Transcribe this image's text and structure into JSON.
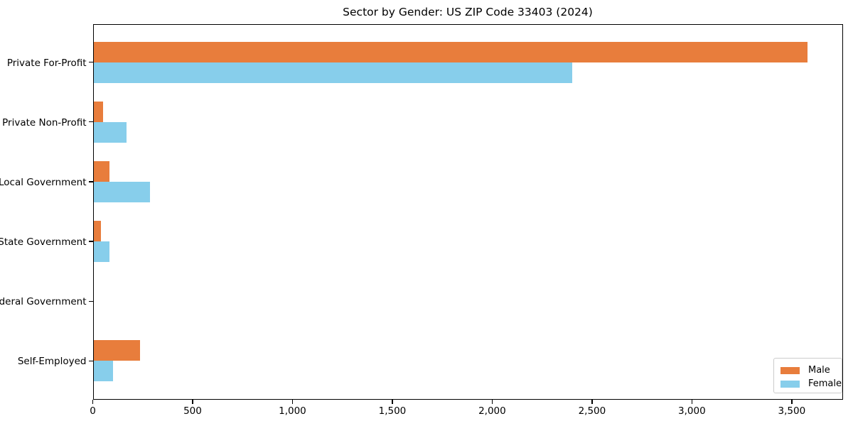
{
  "chart_data": {
    "type": "bar",
    "orientation": "horizontal",
    "title": "Sector by Gender: US ZIP Code 33403 (2024)",
    "categories": [
      "Private For-Profit",
      "Private Non-Profit",
      "Local Government",
      "State Government",
      "Federal Government",
      "Self-Employed"
    ],
    "series": [
      {
        "name": "Male",
        "color": "#E87D3C",
        "values": [
          3580,
          50,
          85,
          40,
          0,
          235
        ]
      },
      {
        "name": "Female",
        "color": "#87CEEB",
        "values": [
          2400,
          170,
          285,
          85,
          0,
          100
        ]
      }
    ],
    "xlabel": "",
    "ylabel": "",
    "xlim": [
      0,
      3755
    ],
    "xticks": [
      0,
      500,
      1000,
      1500,
      2000,
      2500,
      3000,
      3500
    ],
    "xtick_labels": [
      "0",
      "500",
      "1,000",
      "1,500",
      "2,000",
      "2,500",
      "3,000",
      "3,500"
    ],
    "grid": false,
    "legend_position": "lower right",
    "axis_color": "#000000",
    "background_color": "#ffffff"
  }
}
